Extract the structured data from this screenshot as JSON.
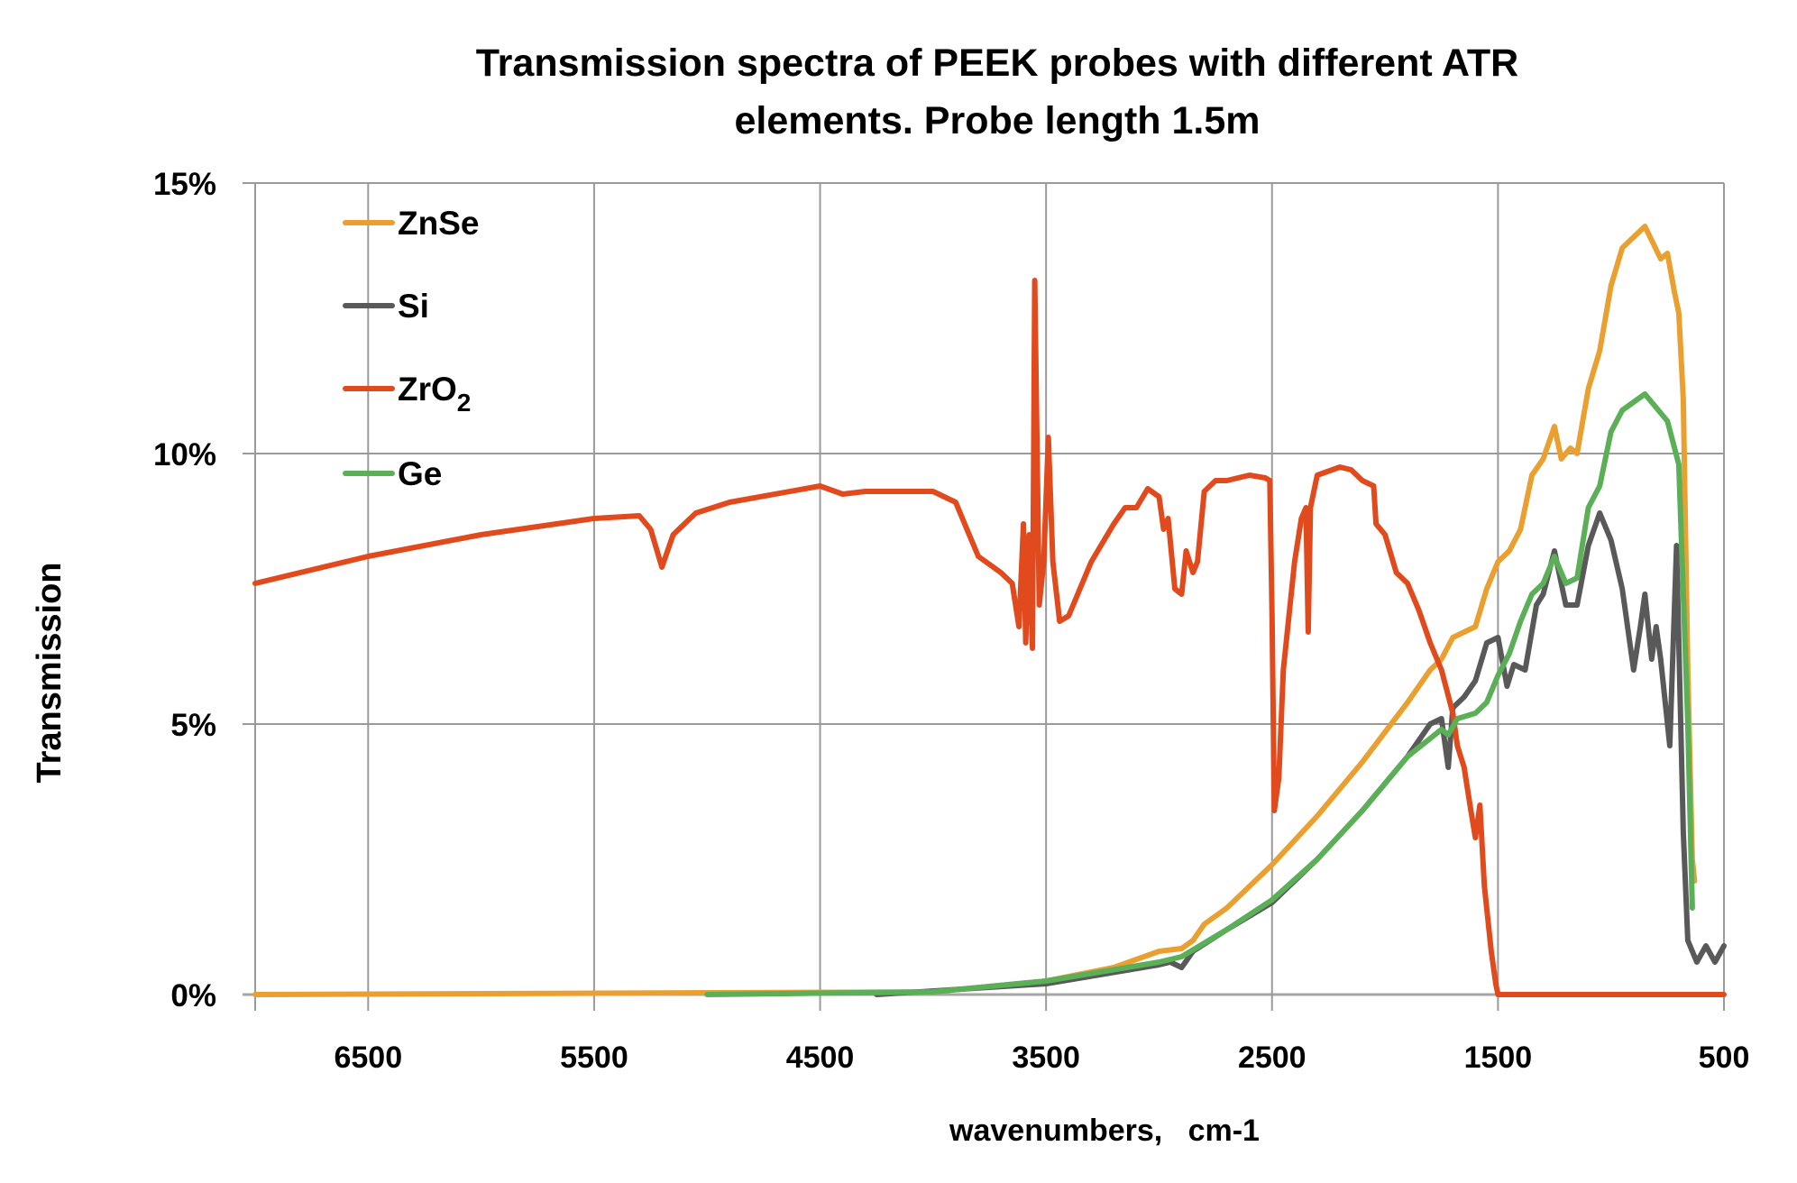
{
  "chart_data": {
    "type": "line",
    "title_line1": "Transmission spectra of  PEEK probes with different ATR",
    "title_line2": "elements.   Probe length 1.5m",
    "xlabel": "wavenumbers,   cm-1",
    "ylabel": "Transmission",
    "xlim": [
      7000,
      500
    ],
    "x_reversed": true,
    "ylim": [
      0,
      15
    ],
    "y_unit": "%",
    "grid": true,
    "legend_position": "top-left",
    "x_ticks": [
      6500,
      5500,
      4500,
      3500,
      2500,
      1500,
      500
    ],
    "x_tick_labels": [
      "6500",
      "5500",
      "4500",
      "3500",
      "2500",
      "1500",
      "500"
    ],
    "y_ticks": [
      0,
      5,
      10,
      15
    ],
    "y_tick_labels": [
      "0%",
      "5%",
      "10%",
      "15%"
    ],
    "series": [
      {
        "name": "ZnSe",
        "color": "#E9A030",
        "x": [
          7000,
          4000,
          3500,
          3200,
          3000,
          2900,
          2850,
          2800,
          2700,
          2500,
          2300,
          2100,
          1900,
          1800,
          1750,
          1700,
          1600,
          1550,
          1500,
          1450,
          1400,
          1350,
          1300,
          1250,
          1220,
          1180,
          1150,
          1100,
          1050,
          1000,
          950,
          850,
          780,
          750,
          720,
          700,
          680,
          660,
          640,
          630
        ],
        "y": [
          0,
          0.05,
          0.25,
          0.5,
          0.8,
          0.85,
          1.0,
          1.3,
          1.6,
          2.4,
          3.3,
          4.3,
          5.4,
          6.0,
          6.2,
          6.6,
          6.8,
          7.5,
          8.0,
          8.2,
          8.6,
          9.6,
          9.9,
          10.5,
          9.9,
          10.1,
          10.0,
          11.2,
          11.9,
          13.1,
          13.8,
          14.2,
          13.6,
          13.7,
          13.0,
          12.6,
          11.0,
          6.0,
          2.5,
          2.1
        ]
      },
      {
        "name": "Si",
        "color": "#595959",
        "x": [
          4250,
          3500,
          3000,
          2950,
          2900,
          2850,
          2700,
          2500,
          2300,
          2100,
          1900,
          1800,
          1750,
          1720,
          1700,
          1650,
          1600,
          1550,
          1500,
          1460,
          1430,
          1380,
          1330,
          1300,
          1250,
          1200,
          1150,
          1100,
          1050,
          1000,
          950,
          900,
          870,
          850,
          820,
          800,
          780,
          740,
          710,
          680,
          660,
          620,
          580,
          540,
          500
        ],
        "y": [
          0,
          0.2,
          0.55,
          0.6,
          0.5,
          0.8,
          1.2,
          1.7,
          2.5,
          3.4,
          4.4,
          5.0,
          5.1,
          4.2,
          5.3,
          5.5,
          5.8,
          6.5,
          6.6,
          5.7,
          6.1,
          6.0,
          7.2,
          7.4,
          8.2,
          7.2,
          7.2,
          8.3,
          8.9,
          8.4,
          7.5,
          6.0,
          6.8,
          7.4,
          6.2,
          6.8,
          6.2,
          4.6,
          8.3,
          3.0,
          1.0,
          0.6,
          0.9,
          0.6,
          0.9
        ]
      },
      {
        "name": "ZrO2",
        "color": "#E04A1C",
        "x": [
          7000,
          6500,
          6000,
          5500,
          5300,
          5250,
          5200,
          5150,
          5050,
          4900,
          4500,
          4400,
          4300,
          4000,
          3900,
          3850,
          3800,
          3700,
          3650,
          3620,
          3600,
          3590,
          3575,
          3560,
          3550,
          3530,
          3510,
          3490,
          3470,
          3440,
          3400,
          3300,
          3200,
          3150,
          3100,
          3050,
          3000,
          2980,
          2960,
          2930,
          2900,
          2880,
          2850,
          2830,
          2800,
          2750,
          2700,
          2600,
          2530,
          2510,
          2500,
          2490,
          2470,
          2450,
          2400,
          2370,
          2350,
          2340,
          2330,
          2300,
          2200,
          2150,
          2100,
          2050,
          2040,
          2000,
          1950,
          1900,
          1850,
          1800,
          1750,
          1700,
          1680,
          1650,
          1620,
          1600,
          1580,
          1560,
          1530,
          1510,
          1500,
          500
        ],
        "y": [
          7.6,
          8.1,
          8.5,
          8.8,
          8.85,
          8.6,
          7.9,
          8.5,
          8.9,
          9.1,
          9.4,
          9.25,
          9.3,
          9.3,
          9.1,
          8.6,
          8.1,
          7.8,
          7.6,
          6.8,
          8.7,
          6.5,
          8.5,
          6.4,
          13.2,
          7.2,
          8.0,
          10.3,
          8.0,
          6.9,
          7.0,
          8.0,
          8.7,
          9.0,
          9.0,
          9.35,
          9.2,
          8.6,
          8.8,
          7.5,
          7.4,
          8.2,
          7.8,
          8.0,
          9.3,
          9.5,
          9.5,
          9.6,
          9.55,
          9.5,
          7.0,
          3.4,
          4.0,
          6.0,
          8.0,
          8.8,
          9.0,
          6.7,
          9.0,
          9.6,
          9.75,
          9.7,
          9.5,
          9.4,
          8.7,
          8.5,
          7.8,
          7.6,
          7.1,
          6.5,
          6.0,
          5.2,
          4.6,
          4.2,
          3.4,
          2.9,
          3.5,
          2.0,
          0.8,
          0.2,
          0,
          0
        ]
      },
      {
        "name": "Ge",
        "color": "#5BAF57",
        "x": [
          5000,
          4000,
          3500,
          3000,
          2900,
          2700,
          2500,
          2300,
          2100,
          1900,
          1750,
          1720,
          1680,
          1600,
          1550,
          1500,
          1450,
          1400,
          1350,
          1300,
          1250,
          1200,
          1150,
          1100,
          1050,
          1000,
          950,
          850,
          750,
          700,
          660,
          640
        ],
        "y": [
          0,
          0.05,
          0.25,
          0.6,
          0.7,
          1.2,
          1.75,
          2.5,
          3.4,
          4.4,
          4.9,
          4.8,
          5.1,
          5.2,
          5.4,
          5.9,
          6.3,
          6.9,
          7.4,
          7.6,
          8.1,
          7.6,
          7.7,
          9.0,
          9.4,
          10.4,
          10.8,
          11.1,
          10.6,
          9.8,
          5.0,
          1.6
        ]
      }
    ],
    "legend": [
      {
        "label": "ZnSe",
        "color": "#E9A030"
      },
      {
        "label": "Si",
        "color": "#595959"
      },
      {
        "label_main": "ZrO",
        "label_sub": "2",
        "color": "#E04A1C"
      },
      {
        "label": "Ge",
        "color": "#5BAF57"
      }
    ]
  }
}
